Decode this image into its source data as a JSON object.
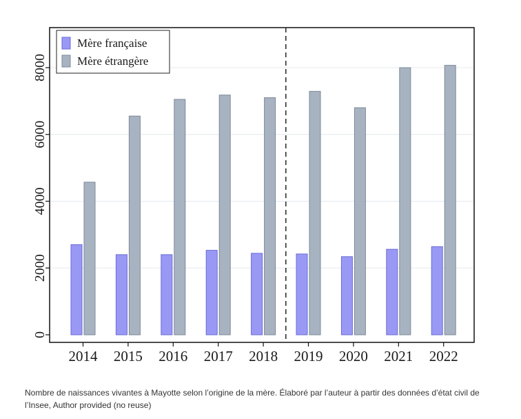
{
  "chart_data": {
    "type": "bar",
    "title": "",
    "xlabel": "",
    "ylabel": "",
    "categories": [
      "2014",
      "2015",
      "2016",
      "2017",
      "2018",
      "2019",
      "2020",
      "2021",
      "2022"
    ],
    "series": [
      {
        "name": "Mère française",
        "color": "#9999f5",
        "stroke": "#6a6ad6",
        "values": [
          2700,
          2400,
          2400,
          2530,
          2440,
          2420,
          2340,
          2560,
          2640
        ]
      },
      {
        "name": "Mère étrangère",
        "color": "#a8b3c2",
        "stroke": "#7d8896",
        "values": [
          4570,
          6550,
          7050,
          7180,
          7100,
          7290,
          6800,
          8000,
          8070
        ]
      }
    ],
    "ylim": [
      0,
      9000
    ],
    "yticks": [
      "0",
      "2000",
      "4000",
      "6000",
      "8000"
    ],
    "grid": true,
    "legend_position": "top-left",
    "dashed_divider_between": [
      "2018",
      "2019"
    ]
  },
  "caption": "Nombre de naissances vivantes à Mayotte selon l’origine de la mère. Élaboré par l’auteur à partir des données d’état civil de l’Insee, Author provided (no reuse)"
}
